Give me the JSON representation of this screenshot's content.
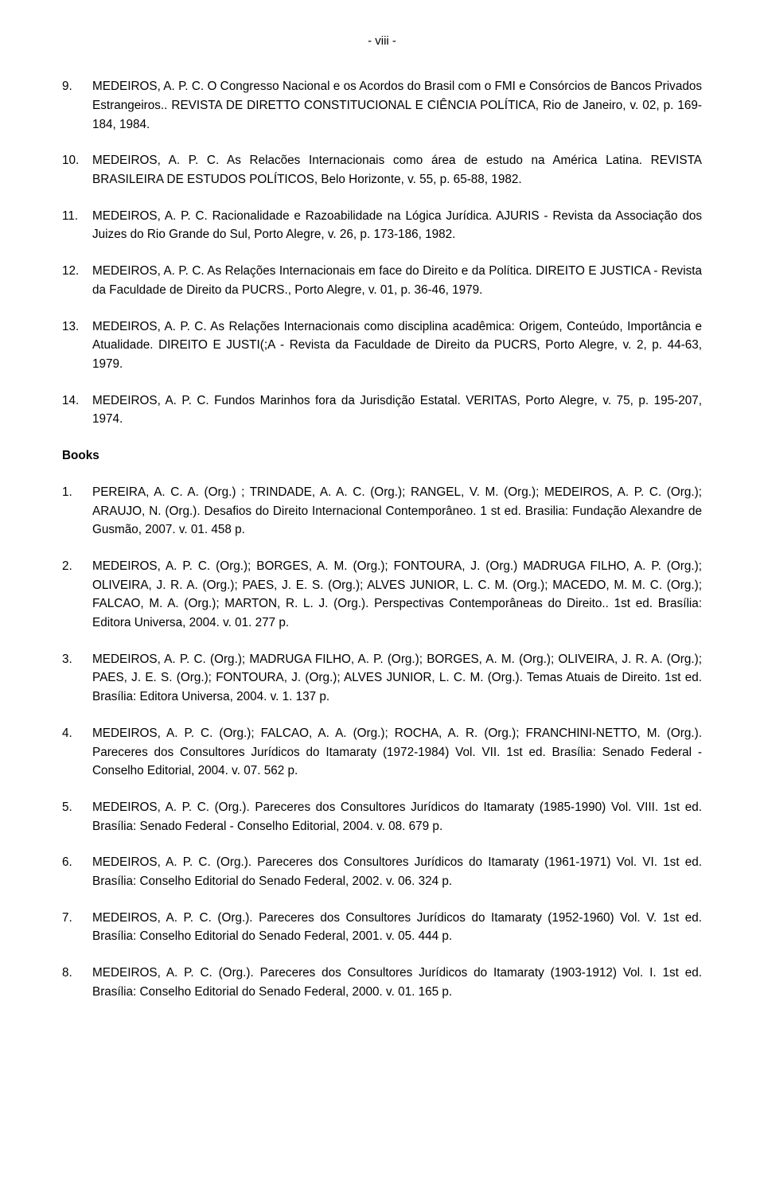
{
  "page_number": "- viii -",
  "articles": [
    {
      "n": "9.",
      "t": "MEDEIROS, A. P. C. O Congresso Nacional e os Acordos do Brasil com o FMI e Consórcios de Bancos Privados Estrangeiros.. REVISTA DE DIRETTO CONSTITUCIONAL E CIÊNCIA POLÍTICA, Rio de Janeiro, v. 02, p. 169-184, 1984."
    },
    {
      "n": "10.",
      "t": "MEDEIROS, A. P. C. As Relacões Internacionais como área de estudo na América Latina. REVISTA BRASILEIRA DE ESTUDOS POLÍTICOS, Belo Horizonte, v. 55, p. 65-88, 1982."
    },
    {
      "n": "11.",
      "t": "MEDEIROS, A. P. C. Racionalidade e Razoabilidade na Lógica Jurídica. AJURIS - Revista da Associação dos Juizes do Rio Grande do Sul, Porto Alegre, v. 26, p. 173-186, 1982."
    },
    {
      "n": "12.",
      "t": "MEDEIROS, A. P. C. As Relações Internacionais em face do Direito e da Política. DIREITO E JUSTICA - Revista da Faculdade de Direito da PUCRS., Porto Alegre, v. 01, p. 36-46, 1979."
    },
    {
      "n": "13.",
      "t": "MEDEIROS, A. P. C. As Relações Internacionais como disciplina acadêmica: Origem, Conteúdo, Importância e Atualidade. DIREITO E JUSTI(;A - Revista da Faculdade de Direito da PUCRS, Porto Alegre, v. 2, p. 44-63, 1979."
    },
    {
      "n": "14.",
      "t": "MEDEIROS, A. P. C. Fundos Marinhos fora da Jurisdição Estatal. VERITAS, Porto Alegre, v. 75, p. 195-207, 1974."
    }
  ],
  "books_heading": "Books",
  "books": [
    {
      "n": "1.",
      "t": "PEREIRA, A. C. A. (Org.) ; TRINDADE, A. A. C. (Org.); RANGEL, V. M. (Org.); MEDEIROS, A. P. C. (Org.); ARAUJO, N. (Org.). Desafios do Direito Internacional Contemporâneo. 1 st ed. Brasilia: Fundação Alexandre de Gusmão, 2007. v. 01. 458 p."
    },
    {
      "n": "2.",
      "t": "MEDEIROS, A. P. C. (Org.); BORGES, A. M. (Org.); FONTOURA, J. (Org.) MADRUGA FILHO, A. P. (Org.); OLIVEIRA, J. R. A. (Org.); PAES, J. E. S. (Org.); ALVES JUNIOR, L. C. M. (Org.); MACEDO, M. M. C. (Org.); FALCAO, M. A. (Org.); MARTON, R. L. J. (Org.). Perspectivas Contemporâneas do Direito.. 1st ed. Brasília: Editora Universa, 2004. v. 01. 277 p."
    },
    {
      "n": "3.",
      "t": "MEDEIROS, A. P. C. (Org.); MADRUGA FILHO, A. P. (Org.); BORGES, A. M. (Org.); OLIVEIRA, J. R. A. (Org.); PAES, J. E. S. (Org.); FONTOURA, J. (Org.); ALVES JUNIOR, L. C. M. (Org.). Temas Atuais de Direito. 1st ed. Brasília: Editora Universa, 2004. v. 1. 137 p."
    },
    {
      "n": "4.",
      "t": "MEDEIROS, A. P. C. (Org.); FALCAO, A. A. (Org.); ROCHA, A. R. (Org.); FRANCHINI-NETTO, M. (Org.). Pareceres dos Consultores Jurídicos do Itamaraty (1972-1984) Vol. VII. 1st ed. Brasília: Senado Federal - Conselho Editorial, 2004. v. 07. 562 p."
    },
    {
      "n": "5.",
      "t": "MEDEIROS, A. P. C. (Org.). Pareceres dos Consultores Jurídicos do Itamaraty (1985-1990) Vol. VIII. 1st ed. Brasília: Senado Federal - Conselho Editorial, 2004. v. 08. 679 p."
    },
    {
      "n": "6.",
      "t": "MEDEIROS, A. P. C. (Org.). Pareceres dos Consultores Jurídicos do Itamaraty (1961-1971) Vol. VI. 1st ed. Brasília: Conselho Editorial do Senado Federal, 2002. v. 06. 324 p."
    },
    {
      "n": "7.",
      "t": "MEDEIROS, A. P. C. (Org.). Pareceres dos Consultores Jurídicos do Itamaraty (1952-1960) Vol. V. 1st ed. Brasília: Conselho Editorial do Senado Federal, 2001. v. 05. 444 p."
    },
    {
      "n": "8.",
      "t": "MEDEIROS, A. P. C. (Org.). Pareceres dos Consultores Jurídicos do Itamaraty (1903-1912) Vol. I. 1st ed. Brasília: Conselho Editorial do Senado Federal, 2000. v. 01. 165 p."
    }
  ]
}
